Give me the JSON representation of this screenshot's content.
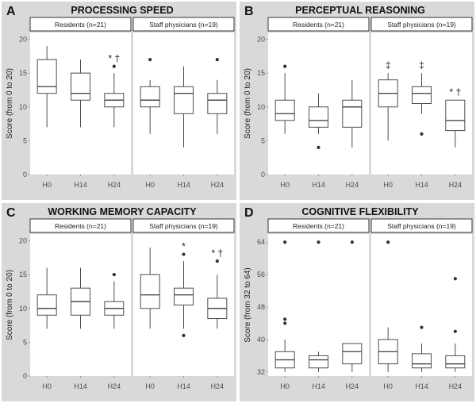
{
  "chart_data": [
    {
      "type": "boxplot",
      "panel_label": "A",
      "title": "PROCESSING SPEED",
      "ylabel": "Score (from 0 to 20)",
      "ylim": [
        0,
        21
      ],
      "yticks": [
        0,
        5,
        10,
        15,
        20
      ],
      "categories": [
        "H0",
        "H14",
        "H24"
      ],
      "groups": [
        {
          "name": "Residents (n=21)",
          "boxes": [
            {
              "x": "H0",
              "whisker_low": 7,
              "q1": 12,
              "median": 13,
              "q3": 17,
              "whisker_high": 19,
              "outliers": []
            },
            {
              "x": "H14",
              "whisker_low": 7,
              "q1": 11,
              "median": 12,
              "q3": 15,
              "whisker_high": 17,
              "outliers": []
            },
            {
              "x": "H24",
              "whisker_low": 7,
              "q1": 10,
              "median": 11,
              "q3": 12,
              "whisker_high": 15,
              "outliers": [
                16
              ],
              "annotation": "* †"
            }
          ]
        },
        {
          "name": "Staff physicians (n=19)",
          "boxes": [
            {
              "x": "H0",
              "whisker_low": 6,
              "q1": 10,
              "median": 11,
              "q3": 13,
              "whisker_high": 14,
              "outliers": [
                17
              ]
            },
            {
              "x": "H14",
              "whisker_low": 4,
              "q1": 9,
              "median": 12,
              "q3": 13,
              "whisker_high": 16,
              "outliers": []
            },
            {
              "x": "H24",
              "whisker_low": 6,
              "q1": 9,
              "median": 11,
              "q3": 12,
              "whisker_high": 14,
              "outliers": [
                17
              ]
            }
          ]
        }
      ]
    },
    {
      "type": "boxplot",
      "panel_label": "B",
      "title": "PERCEPTUAL REASONING",
      "ylabel": "Score (from 0 to 20)",
      "ylim": [
        0,
        21
      ],
      "yticks": [
        0,
        5,
        10,
        15,
        20
      ],
      "categories": [
        "H0",
        "H14",
        "H24"
      ],
      "groups": [
        {
          "name": "Residents (n=21)",
          "boxes": [
            {
              "x": "H0",
              "whisker_low": 6,
              "q1": 8,
              "median": 9,
              "q3": 11,
              "whisker_high": 15,
              "outliers": [
                16
              ]
            },
            {
              "x": "H14",
              "whisker_low": 6,
              "q1": 7,
              "median": 8,
              "q3": 10,
              "whisker_high": 12,
              "outliers": [
                4
              ]
            },
            {
              "x": "H24",
              "whisker_low": 4,
              "q1": 7,
              "median": 10,
              "q3": 11,
              "whisker_high": 14,
              "outliers": []
            }
          ]
        },
        {
          "name": "Staff physicians (n=19)",
          "boxes": [
            {
              "x": "H0",
              "whisker_low": 5,
              "q1": 10,
              "median": 12,
              "q3": 14,
              "whisker_high": 15,
              "outliers": [],
              "annotation": "‡"
            },
            {
              "x": "H14",
              "whisker_low": 9,
              "q1": 10.5,
              "median": 12,
              "q3": 13,
              "whisker_high": 15,
              "outliers": [
                6
              ],
              "annotation": "‡"
            },
            {
              "x": "H24",
              "whisker_low": 4,
              "q1": 6.5,
              "median": 8,
              "q3": 11,
              "whisker_high": 11,
              "outliers": [],
              "annotation": "* †"
            }
          ]
        }
      ]
    },
    {
      "type": "boxplot",
      "panel_label": "C",
      "title": "WORKING MEMORY CAPACITY",
      "ylabel": "Score (from 0 to 20)",
      "ylim": [
        0,
        21
      ],
      "yticks": [
        0,
        5,
        10,
        15,
        20
      ],
      "categories": [
        "H0",
        "H14",
        "H24"
      ],
      "groups": [
        {
          "name": "Residents (n=21)",
          "boxes": [
            {
              "x": "H0",
              "whisker_low": 7,
              "q1": 9,
              "median": 10,
              "q3": 12,
              "whisker_high": 16,
              "outliers": []
            },
            {
              "x": "H14",
              "whisker_low": 7,
              "q1": 9,
              "median": 11,
              "q3": 13,
              "whisker_high": 16,
              "outliers": []
            },
            {
              "x": "H24",
              "whisker_low": 7,
              "q1": 9,
              "median": 10,
              "q3": 11,
              "whisker_high": 14,
              "outliers": [
                15
              ]
            }
          ]
        },
        {
          "name": "Staff physicians (n=19)",
          "boxes": [
            {
              "x": "H0",
              "whisker_low": 7,
              "q1": 10,
              "median": 12,
              "q3": 15,
              "whisker_high": 19,
              "outliers": []
            },
            {
              "x": "H14",
              "whisker_low": 7,
              "q1": 10.5,
              "median": 12,
              "q3": 13,
              "whisker_high": 17,
              "outliers": [
                6,
                18
              ],
              "annotation": "*"
            },
            {
              "x": "H24",
              "whisker_low": 7,
              "q1": 8.5,
              "median": 10,
              "q3": 11.5,
              "whisker_high": 15,
              "outliers": [
                17
              ],
              "annotation": "* †"
            }
          ]
        }
      ]
    },
    {
      "type": "boxplot",
      "panel_label": "D",
      "title": "COGNITIVE FLEXIBILITY",
      "ylabel": "Score (from 32 to 64)",
      "ylim": [
        31,
        66
      ],
      "yticks": [
        32,
        40,
        48,
        56,
        64
      ],
      "categories": [
        "H0",
        "H14",
        "H24"
      ],
      "groups": [
        {
          "name": "Residents (n=21)",
          "boxes": [
            {
              "x": "H0",
              "whisker_low": 32,
              "q1": 33,
              "median": 35,
              "q3": 37,
              "whisker_high": 40,
              "outliers": [
                44,
                45,
                64
              ]
            },
            {
              "x": "H14",
              "whisker_low": 32,
              "q1": 33,
              "median": 35,
              "q3": 36,
              "whisker_high": 37,
              "outliers": [
                64
              ]
            },
            {
              "x": "H24",
              "whisker_low": 32,
              "q1": 34,
              "median": 37,
              "q3": 39,
              "whisker_high": 39,
              "outliers": [
                64
              ]
            }
          ]
        },
        {
          "name": "Staff physicians (n=19)",
          "boxes": [
            {
              "x": "H0",
              "whisker_low": 32,
              "q1": 34,
              "median": 37,
              "q3": 40,
              "whisker_high": 43,
              "outliers": [
                64
              ]
            },
            {
              "x": "H14",
              "whisker_low": 32,
              "q1": 33,
              "median": 34,
              "q3": 36.5,
              "whisker_high": 39,
              "outliers": [
                43
              ]
            },
            {
              "x": "H24",
              "whisker_low": 32,
              "q1": 33,
              "median": 34,
              "q3": 36,
              "whisker_high": 39,
              "outliers": [
                42,
                55
              ]
            }
          ]
        }
      ]
    }
  ],
  "colors": {
    "panel_background": "#d9d9d9",
    "facet_background": "#ffffff",
    "box_fill": "#ffffff",
    "box_stroke": "#4d4d4d",
    "point": "#333333",
    "text": "#222222"
  }
}
